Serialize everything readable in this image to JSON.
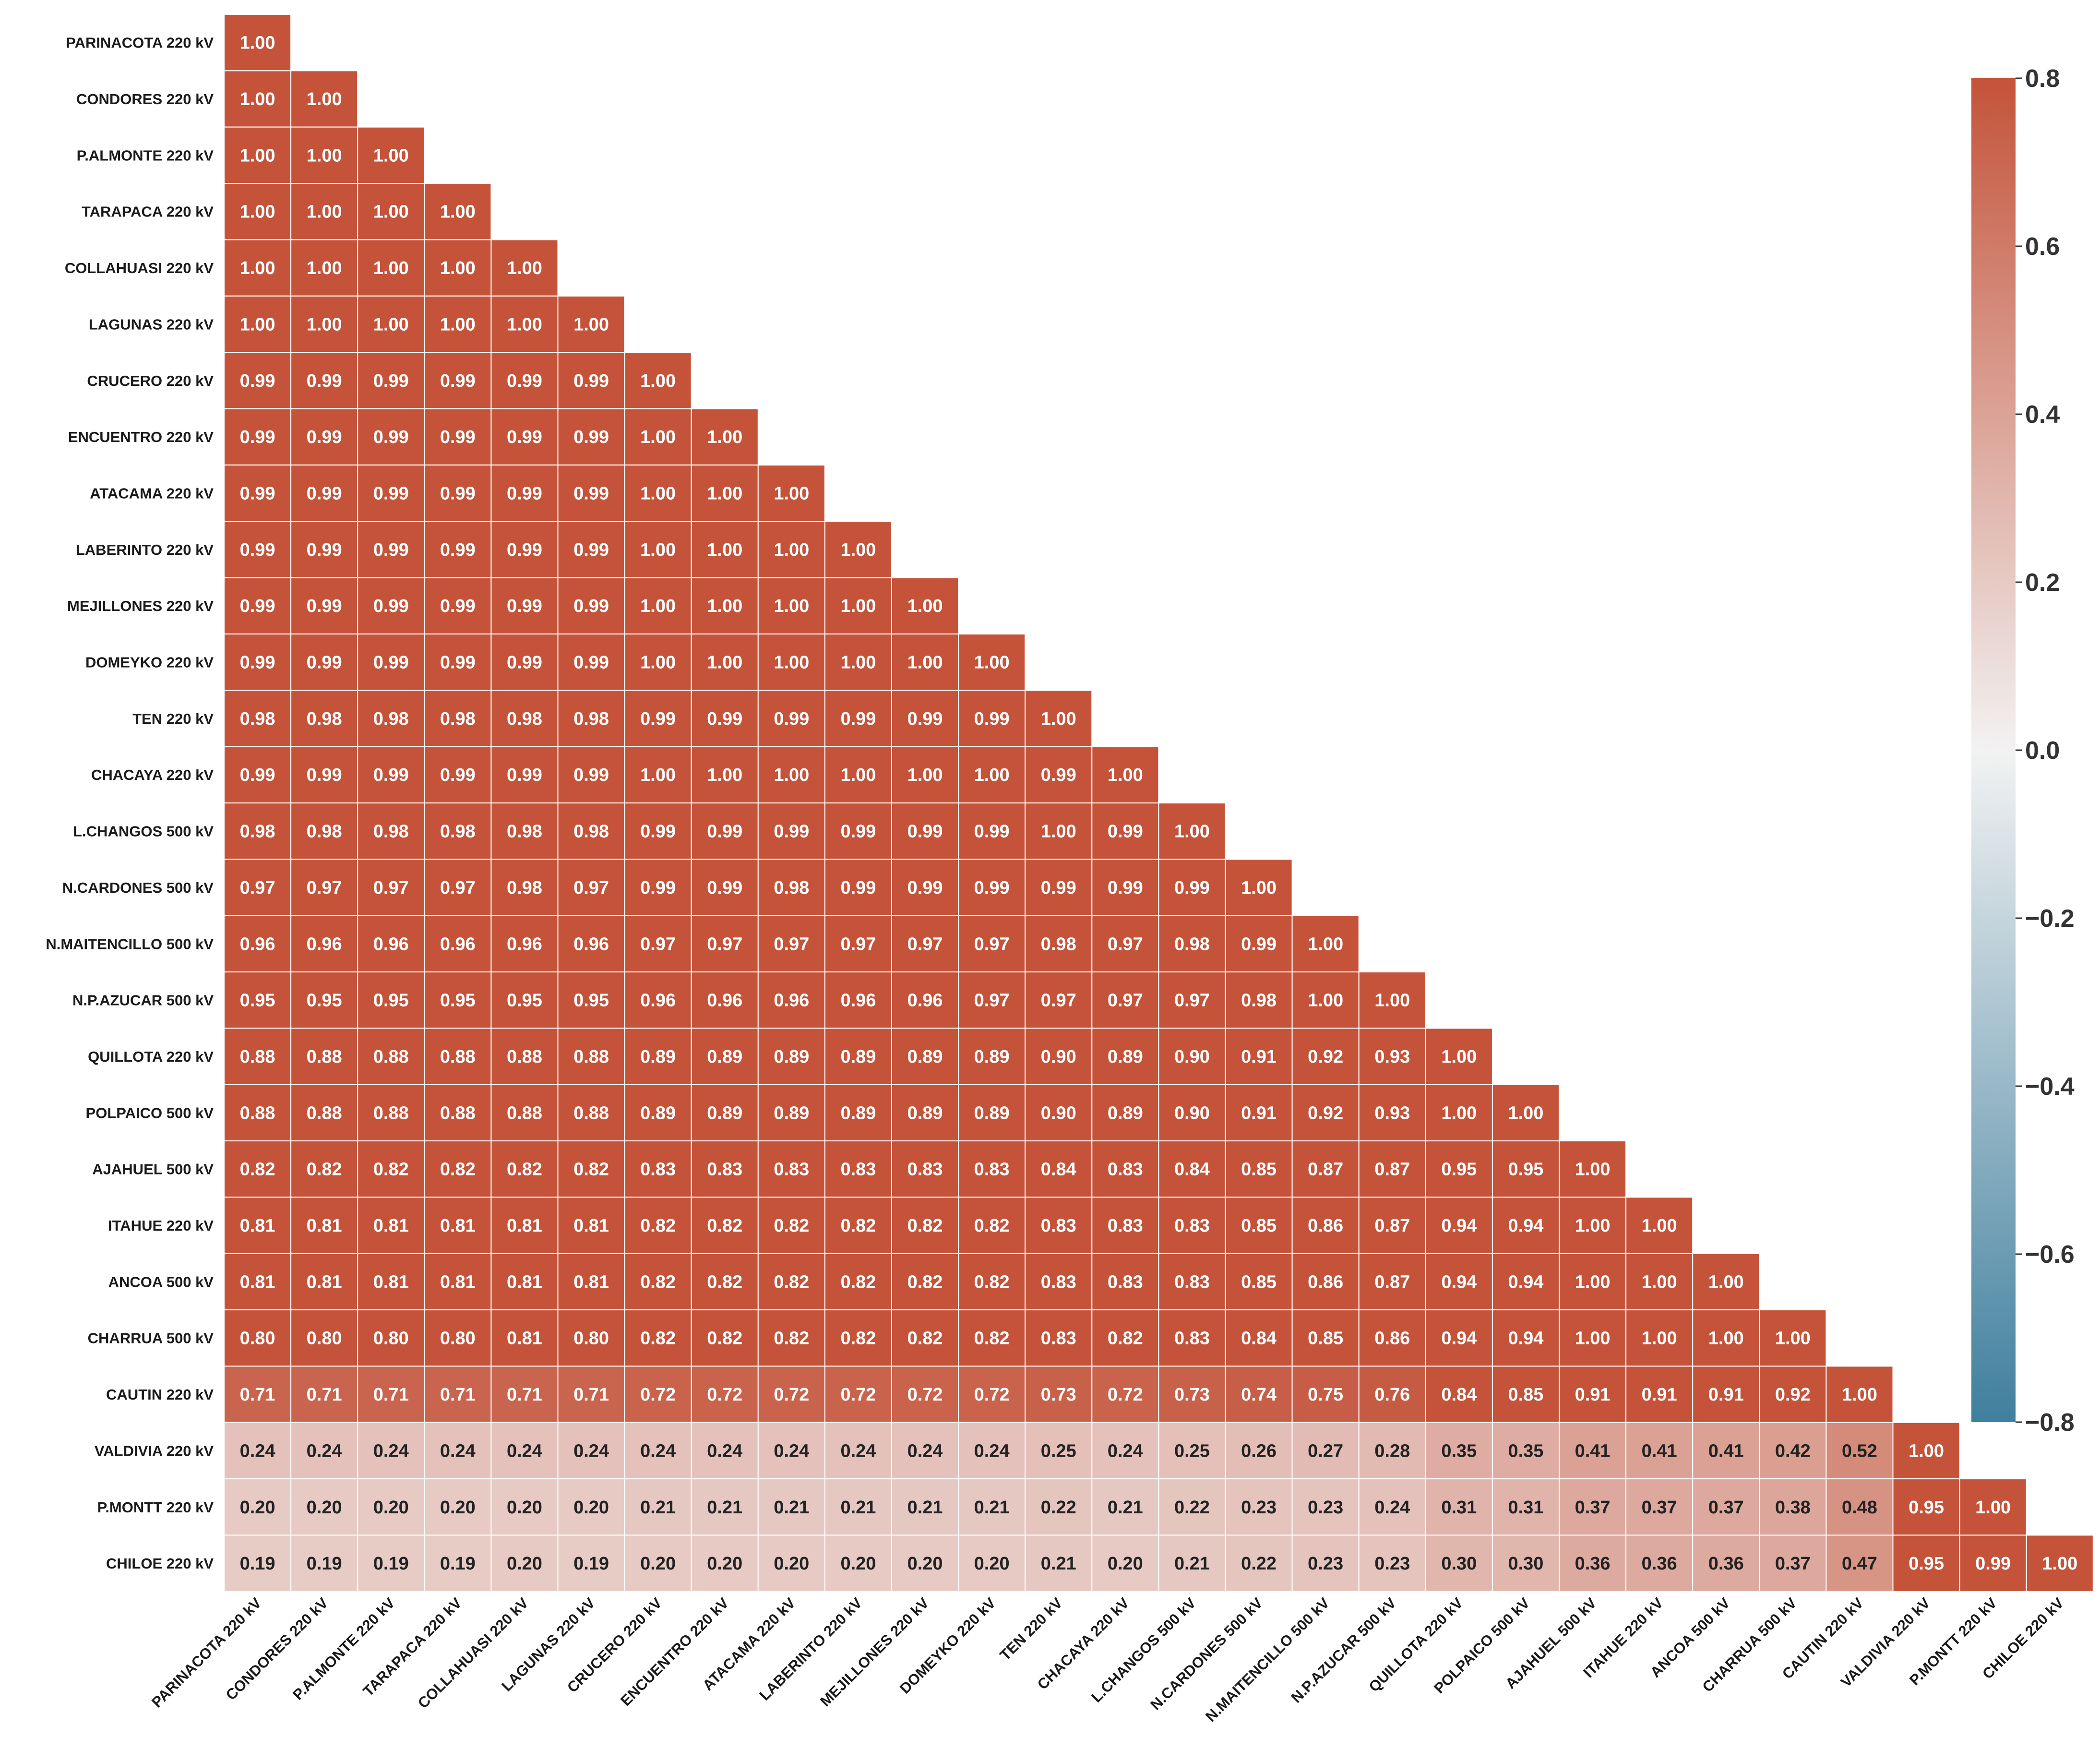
{
  "chart_data": {
    "type": "heatmap",
    "title": "",
    "labels": [
      "PARINACOTA 220 kV",
      "CONDORES 220 kV",
      "P.ALMONTE 220 kV",
      "TARAPACA 220 kV",
      "COLLAHUASI 220 kV",
      "LAGUNAS 220 kV",
      "CRUCERO 220 kV",
      "ENCUENTRO 220 kV",
      "ATACAMA 220 kV",
      "LABERINTO 220 kV",
      "MEJILLONES 220 kV",
      "DOMEYKO 220 kV",
      "TEN 220 kV",
      "CHACAYA 220 kV",
      "L.CHANGOS 500 kV",
      "N.CARDONES 500 kV",
      "N.MAITENCILLO 500 kV",
      "N.P.AZUCAR 500 kV",
      "QUILLOTA 220 kV",
      "POLPAICO 500 kV",
      "AJAHUEL 500 kV",
      "ITAHUE 220 kV",
      "ANCOA 500 kV",
      "CHARRUA 500 kV",
      "CAUTIN 220 kV",
      "VALDIVIA 220 kV",
      "P.MONTT 220 kV",
      "CHILOE 220 kV"
    ],
    "matrix_lower_triangle": [
      [
        "1.00"
      ],
      [
        "1.00",
        "1.00"
      ],
      [
        "1.00",
        "1.00",
        "1.00"
      ],
      [
        "1.00",
        "1.00",
        "1.00",
        "1.00"
      ],
      [
        "1.00",
        "1.00",
        "1.00",
        "1.00",
        "1.00"
      ],
      [
        "1.00",
        "1.00",
        "1.00",
        "1.00",
        "1.00",
        "1.00"
      ],
      [
        "0.99",
        "0.99",
        "0.99",
        "0.99",
        "0.99",
        "0.99",
        "1.00"
      ],
      [
        "0.99",
        "0.99",
        "0.99",
        "0.99",
        "0.99",
        "0.99",
        "1.00",
        "1.00"
      ],
      [
        "0.99",
        "0.99",
        "0.99",
        "0.99",
        "0.99",
        "0.99",
        "1.00",
        "1.00",
        "1.00"
      ],
      [
        "0.99",
        "0.99",
        "0.99",
        "0.99",
        "0.99",
        "0.99",
        "1.00",
        "1.00",
        "1.00",
        "1.00"
      ],
      [
        "0.99",
        "0.99",
        "0.99",
        "0.99",
        "0.99",
        "0.99",
        "1.00",
        "1.00",
        "1.00",
        "1.00",
        "1.00"
      ],
      [
        "0.99",
        "0.99",
        "0.99",
        "0.99",
        "0.99",
        "0.99",
        "1.00",
        "1.00",
        "1.00",
        "1.00",
        "1.00",
        "1.00"
      ],
      [
        "0.98",
        "0.98",
        "0.98",
        "0.98",
        "0.98",
        "0.98",
        "0.99",
        "0.99",
        "0.99",
        "0.99",
        "0.99",
        "0.99",
        "1.00"
      ],
      [
        "0.99",
        "0.99",
        "0.99",
        "0.99",
        "0.99",
        "0.99",
        "1.00",
        "1.00",
        "1.00",
        "1.00",
        "1.00",
        "1.00",
        "0.99",
        "1.00"
      ],
      [
        "0.98",
        "0.98",
        "0.98",
        "0.98",
        "0.98",
        "0.98",
        "0.99",
        "0.99",
        "0.99",
        "0.99",
        "0.99",
        "0.99",
        "1.00",
        "0.99",
        "1.00"
      ],
      [
        "0.97",
        "0.97",
        "0.97",
        "0.97",
        "0.98",
        "0.97",
        "0.99",
        "0.99",
        "0.98",
        "0.99",
        "0.99",
        "0.99",
        "0.99",
        "0.99",
        "0.99",
        "1.00"
      ],
      [
        "0.96",
        "0.96",
        "0.96",
        "0.96",
        "0.96",
        "0.96",
        "0.97",
        "0.97",
        "0.97",
        "0.97",
        "0.97",
        "0.97",
        "0.98",
        "0.97",
        "0.98",
        "0.99",
        "1.00"
      ],
      [
        "0.95",
        "0.95",
        "0.95",
        "0.95",
        "0.95",
        "0.95",
        "0.96",
        "0.96",
        "0.96",
        "0.96",
        "0.96",
        "0.97",
        "0.97",
        "0.97",
        "0.97",
        "0.98",
        "1.00",
        "1.00"
      ],
      [
        "0.88",
        "0.88",
        "0.88",
        "0.88",
        "0.88",
        "0.88",
        "0.89",
        "0.89",
        "0.89",
        "0.89",
        "0.89",
        "0.89",
        "0.90",
        "0.89",
        "0.90",
        "0.91",
        "0.92",
        "0.93",
        "1.00"
      ],
      [
        "0.88",
        "0.88",
        "0.88",
        "0.88",
        "0.88",
        "0.88",
        "0.89",
        "0.89",
        "0.89",
        "0.89",
        "0.89",
        "0.89",
        "0.90",
        "0.89",
        "0.90",
        "0.91",
        "0.92",
        "0.93",
        "1.00",
        "1.00"
      ],
      [
        "0.82",
        "0.82",
        "0.82",
        "0.82",
        "0.82",
        "0.82",
        "0.83",
        "0.83",
        "0.83",
        "0.83",
        "0.83",
        "0.83",
        "0.84",
        "0.83",
        "0.84",
        "0.85",
        "0.87",
        "0.87",
        "0.95",
        "0.95",
        "1.00"
      ],
      [
        "0.81",
        "0.81",
        "0.81",
        "0.81",
        "0.81",
        "0.81",
        "0.82",
        "0.82",
        "0.82",
        "0.82",
        "0.82",
        "0.82",
        "0.83",
        "0.83",
        "0.83",
        "0.85",
        "0.86",
        "0.87",
        "0.94",
        "0.94",
        "1.00",
        "1.00"
      ],
      [
        "0.81",
        "0.81",
        "0.81",
        "0.81",
        "0.81",
        "0.81",
        "0.82",
        "0.82",
        "0.82",
        "0.82",
        "0.82",
        "0.82",
        "0.83",
        "0.83",
        "0.83",
        "0.85",
        "0.86",
        "0.87",
        "0.94",
        "0.94",
        "1.00",
        "1.00",
        "1.00"
      ],
      [
        "0.80",
        "0.80",
        "0.80",
        "0.80",
        "0.81",
        "0.80",
        "0.82",
        "0.82",
        "0.82",
        "0.82",
        "0.82",
        "0.82",
        "0.83",
        "0.82",
        "0.83",
        "0.84",
        "0.85",
        "0.86",
        "0.94",
        "0.94",
        "1.00",
        "1.00",
        "1.00",
        "1.00"
      ],
      [
        "0.71",
        "0.71",
        "0.71",
        "0.71",
        "0.71",
        "0.71",
        "0.72",
        "0.72",
        "0.72",
        "0.72",
        "0.72",
        "0.72",
        "0.73",
        "0.72",
        "0.73",
        "0.74",
        "0.75",
        "0.76",
        "0.84",
        "0.85",
        "0.91",
        "0.91",
        "0.91",
        "0.92",
        "1.00"
      ],
      [
        "0.24",
        "0.24",
        "0.24",
        "0.24",
        "0.24",
        "0.24",
        "0.24",
        "0.24",
        "0.24",
        "0.24",
        "0.24",
        "0.24",
        "0.25",
        "0.24",
        "0.25",
        "0.26",
        "0.27",
        "0.28",
        "0.35",
        "0.35",
        "0.41",
        "0.41",
        "0.41",
        "0.42",
        "0.52",
        "1.00"
      ],
      [
        "0.20",
        "0.20",
        "0.20",
        "0.20",
        "0.20",
        "0.20",
        "0.21",
        "0.21",
        "0.21",
        "0.21",
        "0.21",
        "0.21",
        "0.22",
        "0.21",
        "0.22",
        "0.23",
        "0.23",
        "0.24",
        "0.31",
        "0.31",
        "0.37",
        "0.37",
        "0.37",
        "0.38",
        "0.48",
        "0.95",
        "1.00"
      ],
      [
        "0.19",
        "0.19",
        "0.19",
        "0.19",
        "0.20",
        "0.19",
        "0.20",
        "0.20",
        "0.20",
        "0.20",
        "0.20",
        "0.20",
        "0.21",
        "0.20",
        "0.21",
        "0.22",
        "0.23",
        "0.23",
        "0.30",
        "0.30",
        "0.36",
        "0.36",
        "0.36",
        "0.37",
        "0.47",
        "0.95",
        "0.99",
        "1.00"
      ]
    ],
    "colorbar": {
      "range": [
        -0.8,
        0.8
      ],
      "ticks": [
        "0.8",
        "0.6",
        "0.4",
        "0.2",
        "0.0",
        "−0.2",
        "−0.4",
        "−0.6",
        "−0.8"
      ],
      "low_color": "#3f7f9e",
      "mid_color": "#f2f2f2",
      "high_color": "#c4533a"
    },
    "colors": {
      "text_dark": "#222222",
      "text_light": "#ffffff",
      "gridline": "#ffffff"
    },
    "xlabel": "",
    "ylabel": ""
  }
}
